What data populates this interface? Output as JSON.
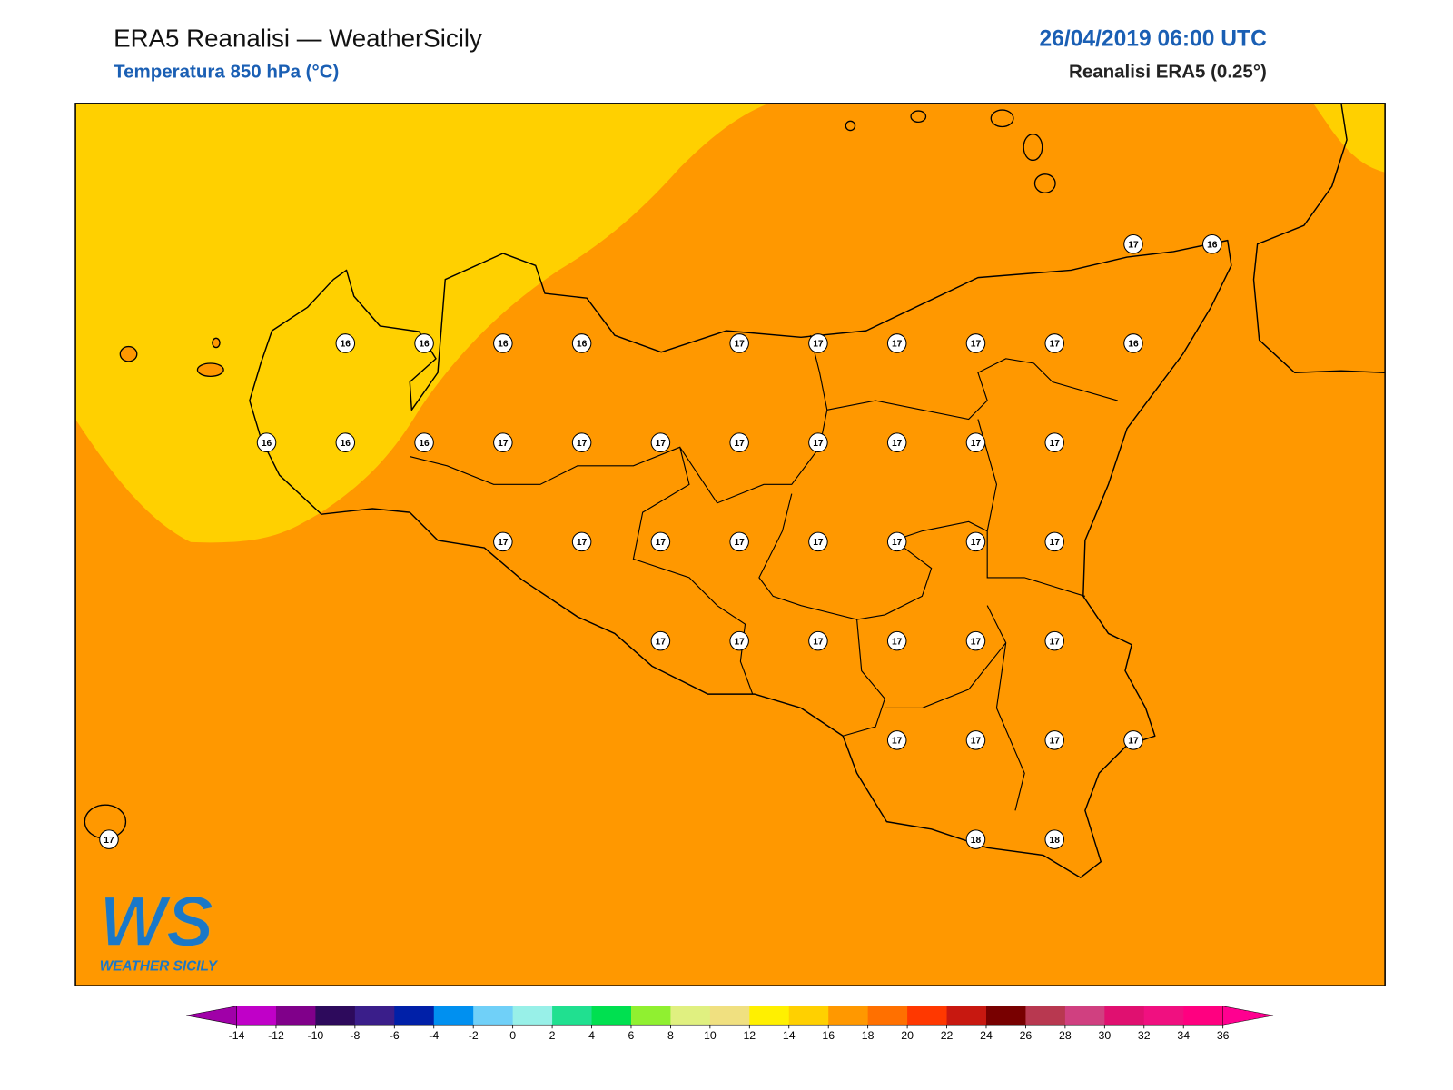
{
  "header": {
    "title": "ERA5 Reanalisi — WeatherSicily",
    "subtitle": "Temperatura 850 hPa (°C)",
    "datetime": "26/04/2019 06:00 UTC",
    "source": "Reanalisi ERA5 (0.25°)"
  },
  "map": {
    "grid": [
      [
        null,
        null,
        null,
        null,
        null,
        null,
        null,
        null,
        null,
        null,
        null,
        null,
        null,
        17,
        16
      ],
      [
        null,
        null,
        null,
        16,
        16,
        16,
        16,
        null,
        17,
        17,
        17,
        17,
        17,
        16,
        null
      ],
      [
        null,
        null,
        16,
        16,
        16,
        17,
        17,
        17,
        17,
        17,
        17,
        17,
        17,
        null,
        null
      ],
      [
        null,
        null,
        null,
        null,
        null,
        17,
        17,
        17,
        17,
        17,
        17,
        17,
        17,
        null,
        null
      ],
      [
        null,
        null,
        null,
        null,
        null,
        null,
        null,
        17,
        17,
        17,
        17,
        17,
        17,
        null,
        null
      ],
      [
        null,
        null,
        null,
        null,
        null,
        null,
        null,
        null,
        null,
        null,
        17,
        17,
        17,
        17,
        null
      ],
      [
        17,
        null,
        null,
        null,
        null,
        null,
        null,
        null,
        null,
        null,
        null,
        18,
        18,
        null,
        null
      ]
    ]
  },
  "logo": {
    "mark": "WS",
    "name": "WEATHER SICILY"
  },
  "colorbar": {
    "ticks": [
      -14,
      -12,
      -10,
      -8,
      -6,
      -4,
      -2,
      0,
      2,
      4,
      6,
      8,
      10,
      12,
      14,
      16,
      18,
      20,
      22,
      24,
      26,
      28,
      30,
      32,
      34,
      36
    ],
    "under": "#a000a8",
    "colors": [
      "#c000c8",
      "#80008a",
      "#2d0a5c",
      "#3a1e8a",
      "#0020a8",
      "#0090f0",
      "#70d0f8",
      "#98f0e8",
      "#20e090",
      "#00e050",
      "#90f030",
      "#e0f080",
      "#f0e080",
      "#fff000",
      "#ffd000",
      "#ff9800",
      "#ff7000",
      "#ff3800",
      "#c81810",
      "#780000",
      "#b83850",
      "#d04080",
      "#e01070",
      "#f01080",
      "#ff0080"
    ],
    "over": "#ff0090"
  }
}
